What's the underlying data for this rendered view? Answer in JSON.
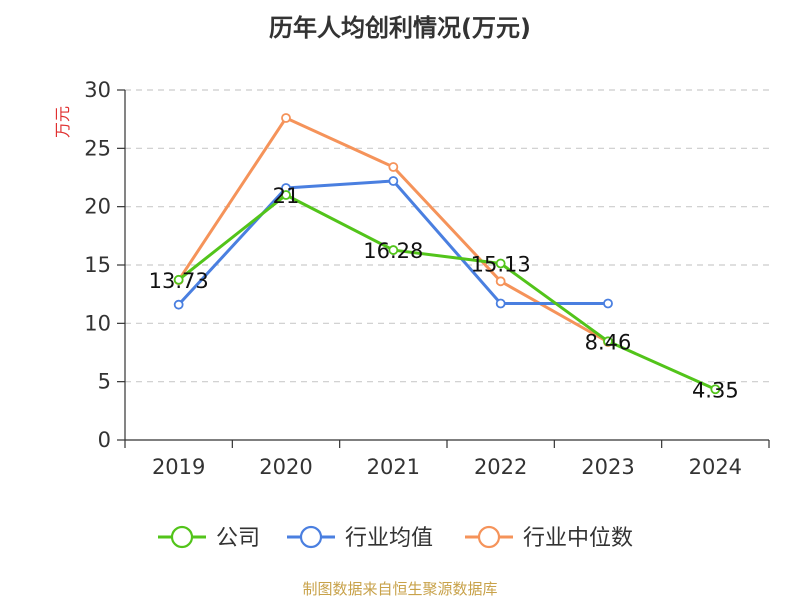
{
  "chart_data": {
    "type": "line",
    "title": "历年人均创利情况(万元)",
    "ylabel": "万元",
    "xlabel": "",
    "categories": [
      "2019",
      "2020",
      "2021",
      "2022",
      "2023",
      "2024"
    ],
    "ylim": [
      0,
      30
    ],
    "yticks": [
      0,
      5,
      10,
      15,
      20,
      25,
      30
    ],
    "grid": true,
    "legend_position": "bottom",
    "series": [
      {
        "name": "公司",
        "color": "#52c41a",
        "values": [
          13.73,
          21,
          16.28,
          15.13,
          8.46,
          4.35
        ],
        "labels": [
          "13.73",
          "21",
          "16.28",
          "15.13",
          "8.46",
          "4.35"
        ]
      },
      {
        "name": "行业均值",
        "color": "#4a7fe0",
        "values": [
          11.6,
          21.6,
          22.2,
          11.7,
          11.7,
          null
        ]
      },
      {
        "name": "行业中位数",
        "color": "#f5935a",
        "values": [
          13.7,
          27.6,
          23.4,
          13.6,
          8.4,
          null
        ]
      }
    ]
  },
  "source": "制图数据来自恒生聚源数据库"
}
